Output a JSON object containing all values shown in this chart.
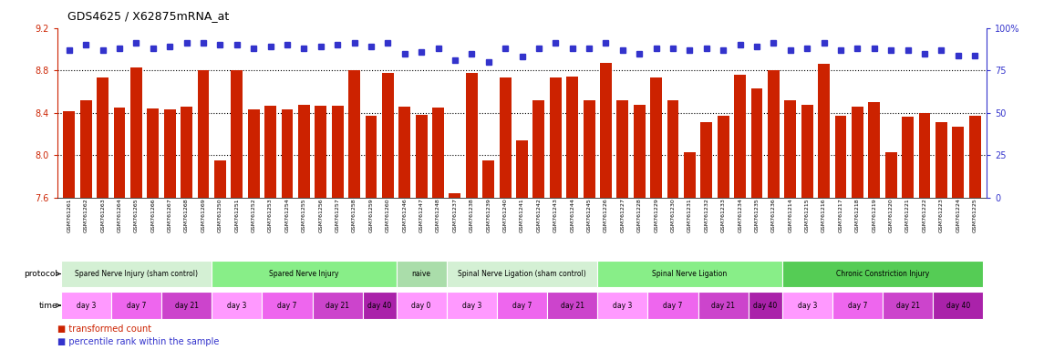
{
  "title": "GDS4625 / X62875mRNA_at",
  "bar_color": "#cc2200",
  "dot_color": "#3333cc",
  "ylim_left": [
    7.6,
    9.2
  ],
  "ylim_right": [
    0,
    100
  ],
  "yticks_left": [
    7.6,
    8.0,
    8.4,
    8.8,
    9.2
  ],
  "yticks_right": [
    0,
    25,
    50,
    75,
    100
  ],
  "ytick_labels_right": [
    "0",
    "25",
    "50",
    "75",
    "100%"
  ],
  "background_color": "#ffffff",
  "samples": [
    "GSM761261",
    "GSM761262",
    "GSM761263",
    "GSM761264",
    "GSM761265",
    "GSM761266",
    "GSM761267",
    "GSM761268",
    "GSM761269",
    "GSM761250",
    "GSM761251",
    "GSM761252",
    "GSM761253",
    "GSM761254",
    "GSM761255",
    "GSM761256",
    "GSM761257",
    "GSM761258",
    "GSM761259",
    "GSM761260",
    "GSM761246",
    "GSM761247",
    "GSM761248",
    "GSM761237",
    "GSM761238",
    "GSM761239",
    "GSM761240",
    "GSM761241",
    "GSM761242",
    "GSM761243",
    "GSM761244",
    "GSM761245",
    "GSM761226",
    "GSM761227",
    "GSM761228",
    "GSM761229",
    "GSM761230",
    "GSM761231",
    "GSM761232",
    "GSM761233",
    "GSM761234",
    "GSM761235",
    "GSM761236",
    "GSM761214",
    "GSM761215",
    "GSM761216",
    "GSM761217",
    "GSM761218",
    "GSM761219",
    "GSM761220",
    "GSM761221",
    "GSM761222",
    "GSM761223",
    "GSM761224",
    "GSM761225"
  ],
  "bar_values": [
    8.42,
    8.52,
    8.73,
    8.45,
    8.83,
    8.44,
    8.43,
    8.46,
    8.8,
    7.95,
    8.8,
    8.43,
    8.47,
    8.43,
    8.48,
    8.47,
    8.47,
    8.8,
    8.37,
    8.78,
    8.46,
    8.38,
    8.45,
    7.64,
    8.78,
    7.95,
    8.73,
    8.14,
    8.52,
    8.73,
    8.74,
    8.52,
    8.87,
    8.52,
    8.48,
    8.73,
    8.52,
    8.03,
    8.31,
    8.37,
    8.76,
    8.63,
    8.8,
    8.52,
    8.48,
    8.86,
    8.37,
    8.46,
    8.5,
    8.03,
    8.36,
    8.4,
    8.31,
    8.27,
    8.37
  ],
  "dot_values": [
    87,
    90,
    87,
    88,
    91,
    88,
    89,
    91,
    91,
    90,
    90,
    88,
    89,
    90,
    88,
    89,
    90,
    91,
    89,
    91,
    85,
    86,
    88,
    81,
    85,
    80,
    88,
    83,
    88,
    91,
    88,
    88,
    91,
    87,
    85,
    88,
    88,
    87,
    88,
    87,
    90,
    89,
    91,
    87,
    88,
    91,
    87,
    88,
    88,
    87,
    87,
    85,
    87,
    84,
    84
  ],
  "protocols": [
    {
      "label": "Spared Nerve Injury (sham control)",
      "start": 0,
      "end": 9,
      "color": "#d4f0d4"
    },
    {
      "label": "Spared Nerve Injury",
      "start": 9,
      "end": 20,
      "color": "#88ee88"
    },
    {
      "label": "naive",
      "start": 20,
      "end": 23,
      "color": "#aaddaa"
    },
    {
      "label": "Spinal Nerve Ligation (sham control)",
      "start": 23,
      "end": 32,
      "color": "#d4f0d4"
    },
    {
      "label": "Spinal Nerve Ligation",
      "start": 32,
      "end": 43,
      "color": "#88ee88"
    },
    {
      "label": "Chronic Constriction Injury",
      "start": 43,
      "end": 55,
      "color": "#55cc55"
    }
  ],
  "times": [
    {
      "label": "day 3",
      "start": 0,
      "end": 3,
      "color": "#ff99ff"
    },
    {
      "label": "day 7",
      "start": 3,
      "end": 6,
      "color": "#ee66ee"
    },
    {
      "label": "day 21",
      "start": 6,
      "end": 9,
      "color": "#cc44cc"
    },
    {
      "label": "day 3",
      "start": 9,
      "end": 12,
      "color": "#ff99ff"
    },
    {
      "label": "day 7",
      "start": 12,
      "end": 15,
      "color": "#ee66ee"
    },
    {
      "label": "day 21",
      "start": 15,
      "end": 18,
      "color": "#cc44cc"
    },
    {
      "label": "day 40",
      "start": 18,
      "end": 20,
      "color": "#aa22aa"
    },
    {
      "label": "day 0",
      "start": 20,
      "end": 23,
      "color": "#ff99ff"
    },
    {
      "label": "day 3",
      "start": 23,
      "end": 26,
      "color": "#ff99ff"
    },
    {
      "label": "day 7",
      "start": 26,
      "end": 29,
      "color": "#ee66ee"
    },
    {
      "label": "day 21",
      "start": 29,
      "end": 32,
      "color": "#cc44cc"
    },
    {
      "label": "day 3",
      "start": 32,
      "end": 35,
      "color": "#ff99ff"
    },
    {
      "label": "day 7",
      "start": 35,
      "end": 38,
      "color": "#ee66ee"
    },
    {
      "label": "day 21",
      "start": 38,
      "end": 41,
      "color": "#cc44cc"
    },
    {
      "label": "day 40",
      "start": 41,
      "end": 43,
      "color": "#aa22aa"
    },
    {
      "label": "day 3",
      "start": 43,
      "end": 46,
      "color": "#ff99ff"
    },
    {
      "label": "day 7",
      "start": 46,
      "end": 49,
      "color": "#ee66ee"
    },
    {
      "label": "day 21",
      "start": 49,
      "end": 52,
      "color": "#cc44cc"
    },
    {
      "label": "day 40",
      "start": 52,
      "end": 55,
      "color": "#aa22aa"
    }
  ]
}
